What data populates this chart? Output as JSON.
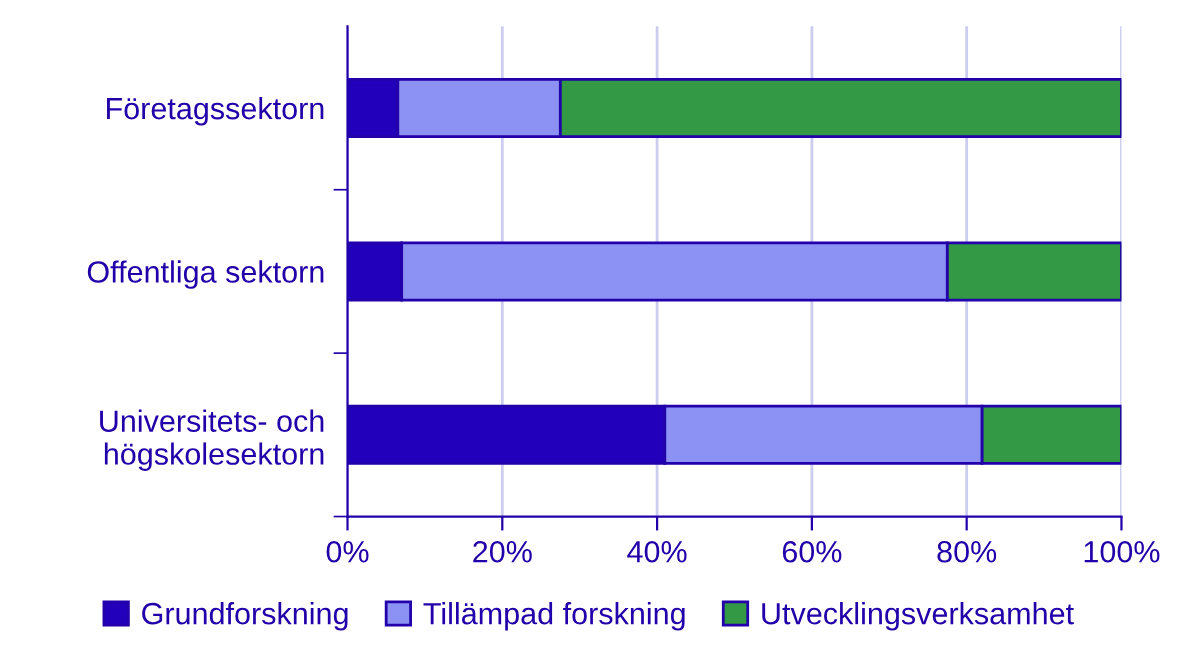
{
  "chart_data": {
    "type": "bar",
    "orientation": "horizontal",
    "stacked": true,
    "categories": [
      "Företagssektorn",
      "Offentliga sektorn",
      "Universitets- och\nhögskolesektorn"
    ],
    "series": [
      {
        "name": "Grundforskning",
        "color": "#2200bb",
        "values": [
          6.5,
          7,
          41
        ]
      },
      {
        "name": "Tillämpad forskning",
        "color": "#8c92f4",
        "values": [
          21,
          70.5,
          41
        ]
      },
      {
        "name": "Utvecklingsverksamhet",
        "color": "#339944",
        "values": [
          72.5,
          22.5,
          18
        ]
      }
    ],
    "xlim": [
      0,
      100
    ],
    "xticks": [
      {
        "value": 0,
        "label": "0%"
      },
      {
        "value": 20,
        "label": "20%"
      },
      {
        "value": 40,
        "label": "40%"
      },
      {
        "value": 60,
        "label": "60%"
      },
      {
        "value": 80,
        "label": "80%"
      },
      {
        "value": 100,
        "label": "100%"
      }
    ],
    "grid": "x",
    "legend": "bottom"
  }
}
